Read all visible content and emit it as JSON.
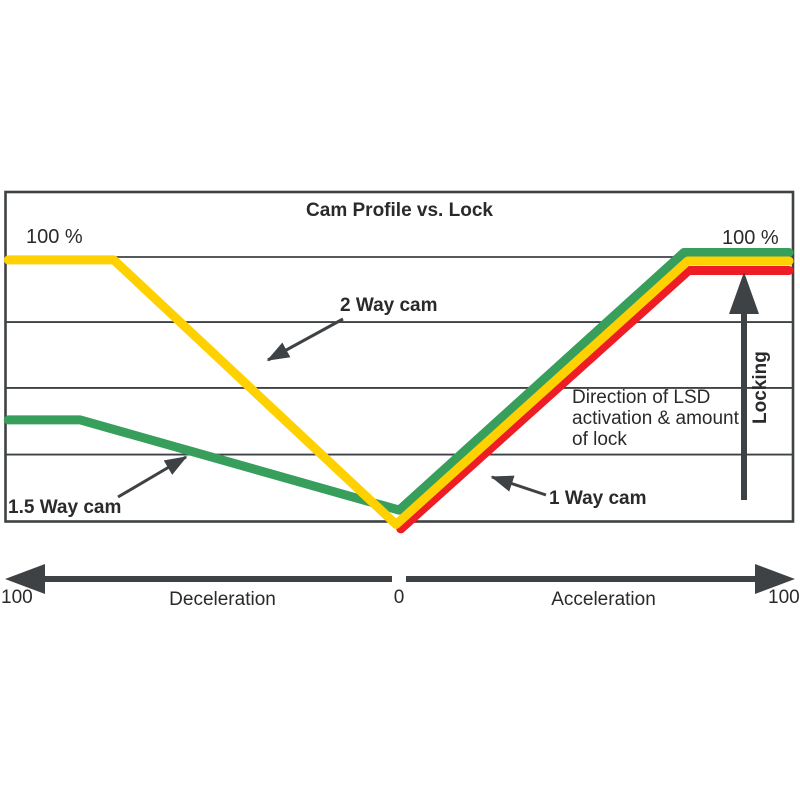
{
  "figure": {
    "title": "Cam Profile vs. Lock",
    "note": "Direction of LSD\nactivation & amount\nof lock",
    "locking_label": "Locking"
  },
  "colors": {
    "frame_and_arrows": "#3F4244",
    "text": "#2B2A2A",
    "two_way_cam": "#FFD100",
    "one_five_way_cam": "#379E5B",
    "one_way_cam": "#EE1C25",
    "background": "#FFFFFF"
  },
  "chart_data": {
    "type": "line",
    "title": "Cam Profile vs. Lock",
    "x_axis": {
      "min_label": "100",
      "zero_label": "0",
      "max_label": "100",
      "left_region_label": "Deceleration",
      "right_region_label": "Acceleration",
      "range": [
        -100,
        100
      ],
      "style": "double-headed arrow with gap at zero"
    },
    "y_axis": {
      "top_left_label": "100 %",
      "top_right_label": "100 %",
      "direction_label": "Locking",
      "range": [
        0,
        100
      ],
      "gridlines_pct": [
        100,
        75.4,
        50.5,
        25.3
      ],
      "grid": true
    },
    "annotation": "Direction of LSD\nactivation & amount\nof lock",
    "legend_position": "inline-annotations",
    "series": [
      {
        "name": "2 Way cam",
        "color": "#FFD100",
        "points": [
          [
            -99.3,
            98.9
          ],
          [
            -72.5,
            98.9
          ],
          [
            -0.8,
            -1.1
          ],
          [
            73.3,
            98.5
          ],
          [
            99,
            98.5
          ]
        ]
      },
      {
        "name": "1.5 Way cam",
        "color": "#379E5B",
        "points": [
          [
            -99.3,
            38.4
          ],
          [
            -81,
            38.4
          ],
          [
            0,
            4.3
          ],
          [
            72.3,
            101.7
          ],
          [
            99,
            101.7
          ]
        ]
      },
      {
        "name": "1 Way cam",
        "color": "#EE1C25",
        "points": [
          [
            0.4,
            -2.8
          ],
          [
            73.5,
            94.9
          ],
          [
            99,
            94.9
          ]
        ]
      }
    ]
  }
}
